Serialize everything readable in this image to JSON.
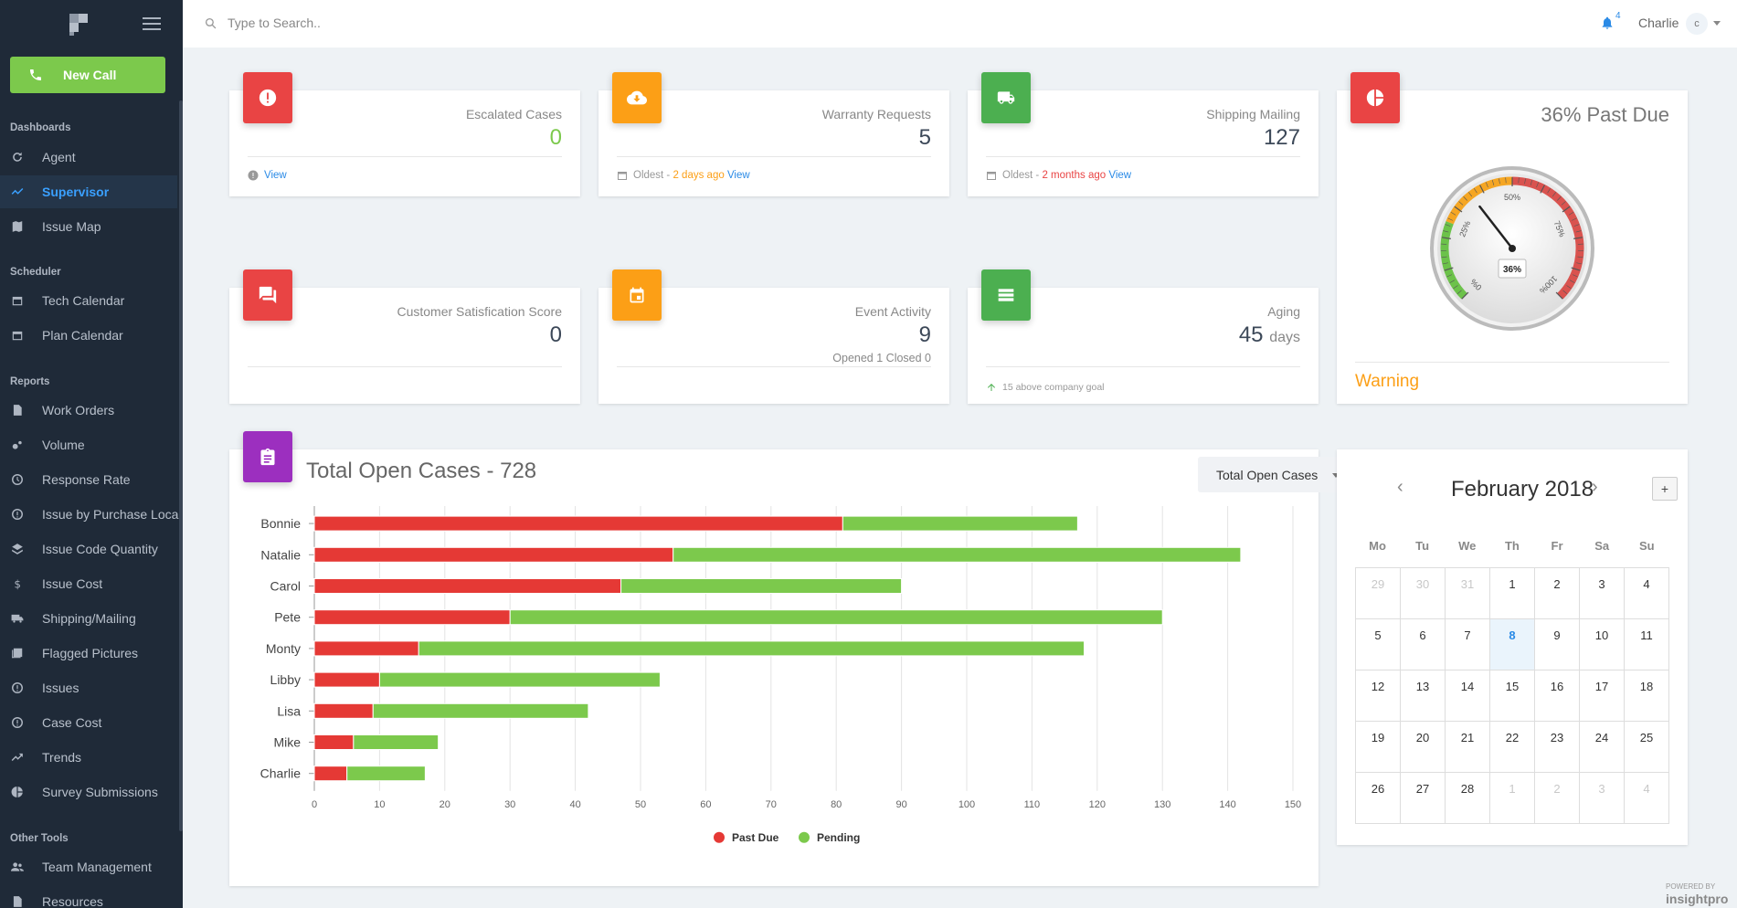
{
  "sidebar": {
    "new_call": "New Call",
    "sections": {
      "dashboards": "Dashboards",
      "scheduler": "Scheduler",
      "reports": "Reports",
      "other": "Other Tools"
    },
    "items": [
      {
        "label": "Agent",
        "icon": "refresh-icon"
      },
      {
        "label": "Supervisor",
        "icon": "trend-icon"
      },
      {
        "label": "Issue Map",
        "icon": "map-icon"
      },
      {
        "label": "Tech Calendar",
        "icon": "calendar-icon"
      },
      {
        "label": "Plan Calendar",
        "icon": "calendar-icon"
      },
      {
        "label": "Work Orders",
        "icon": "document-icon"
      },
      {
        "label": "Volume",
        "icon": "bubbles-icon"
      },
      {
        "label": "Response Rate",
        "icon": "history-icon"
      },
      {
        "label": "Issue by Purchase Loca",
        "icon": "info-icon"
      },
      {
        "label": "Issue Code Quantity",
        "icon": "layers-icon"
      },
      {
        "label": "Issue Cost",
        "icon": "dollar-icon"
      },
      {
        "label": "Shipping/Mailing",
        "icon": "truck-icon"
      },
      {
        "label": "Flagged Pictures",
        "icon": "photo-icon"
      },
      {
        "label": "Issues",
        "icon": "info-icon"
      },
      {
        "label": "Case Cost",
        "icon": "info-icon"
      },
      {
        "label": "Trends",
        "icon": "trend-up-icon"
      },
      {
        "label": "Survey Submissions",
        "icon": "pie-icon"
      },
      {
        "label": "Team Management",
        "icon": "people-icon"
      },
      {
        "label": "Resources",
        "icon": "document-icon"
      }
    ]
  },
  "topbar": {
    "search_placeholder": "Type to Search..",
    "notif_count": "4",
    "user": "Charlie",
    "avatar": "c"
  },
  "cards": {
    "escalated": {
      "title": "Escalated Cases",
      "value": "0",
      "footer_link": "View"
    },
    "warranty": {
      "title": "Warranty Requests",
      "value": "5",
      "footer_prefix": "Oldest - ",
      "footer_age": "2 days ago",
      "footer_link": "View"
    },
    "shipping": {
      "title": "Shipping Mailing",
      "value": "127",
      "footer_prefix": "Oldest - ",
      "footer_age": "2 months ago",
      "footer_link": "View"
    },
    "satisfaction": {
      "title": "Customer Satisfication Score",
      "value": "0"
    },
    "event": {
      "title": "Event Activity",
      "value": "9",
      "sub": "Opened 1 Closed 0"
    },
    "aging": {
      "title": "Aging",
      "value": "45",
      "unit": "days",
      "footer": "15 above company goal"
    },
    "pastdue": {
      "title": "36% Past Due",
      "status": "Warning",
      "gauge_value": 36,
      "gauge_center": "36%",
      "gauge_ticks": [
        "0%",
        "25%",
        "50%",
        "75%",
        "100%"
      ]
    }
  },
  "chart": {
    "title": "Total Open Cases - 728",
    "dropdown": "Total Open Cases"
  },
  "chart_data": {
    "type": "bar",
    "orientation": "horizontal",
    "stacked": true,
    "categories": [
      "Bonnie",
      "Natalie",
      "Carol",
      "Pete",
      "Monty",
      "Libby",
      "Lisa",
      "Mike",
      "Charlie"
    ],
    "series": [
      {
        "name": "Past Due",
        "color": "#e53935",
        "values": [
          81,
          55,
          47,
          30,
          16,
          10,
          9,
          6,
          5
        ]
      },
      {
        "name": "Pending",
        "color": "#7cc94c",
        "values": [
          36,
          87,
          43,
          100,
          102,
          43,
          33,
          13,
          12
        ]
      }
    ],
    "xlim": [
      0,
      150
    ],
    "xticks": [
      0,
      10,
      20,
      30,
      40,
      50,
      60,
      70,
      80,
      90,
      100,
      110,
      120,
      130,
      140,
      150
    ],
    "grid": true,
    "legend": "bottom-center"
  },
  "calendar": {
    "month": "February 2018",
    "plus": "+",
    "prev": "‹",
    "next": "›",
    "dow": [
      "Mo",
      "Tu",
      "We",
      "Th",
      "Fr",
      "Sa",
      "Su"
    ],
    "weeks": [
      [
        {
          "d": "29",
          "m": 1
        },
        {
          "d": "30",
          "m": 1
        },
        {
          "d": "31",
          "m": 1
        },
        {
          "d": "1"
        },
        {
          "d": "2"
        },
        {
          "d": "3"
        },
        {
          "d": "4"
        }
      ],
      [
        {
          "d": "5"
        },
        {
          "d": "6"
        },
        {
          "d": "7"
        },
        {
          "d": "8",
          "t": 1
        },
        {
          "d": "9"
        },
        {
          "d": "10"
        },
        {
          "d": "11"
        }
      ],
      [
        {
          "d": "12"
        },
        {
          "d": "13"
        },
        {
          "d": "14"
        },
        {
          "d": "15"
        },
        {
          "d": "16"
        },
        {
          "d": "17"
        },
        {
          "d": "18"
        }
      ],
      [
        {
          "d": "19"
        },
        {
          "d": "20"
        },
        {
          "d": "21"
        },
        {
          "d": "22"
        },
        {
          "d": "23"
        },
        {
          "d": "24"
        },
        {
          "d": "25"
        }
      ],
      [
        {
          "d": "26"
        },
        {
          "d": "27"
        },
        {
          "d": "28"
        },
        {
          "d": "1",
          "m": 1
        },
        {
          "d": "2",
          "m": 1
        },
        {
          "d": "3",
          "m": 1
        },
        {
          "d": "4",
          "m": 1
        }
      ]
    ]
  },
  "footer": {
    "powered": "POWERED BY",
    "brand": "insightpro"
  }
}
